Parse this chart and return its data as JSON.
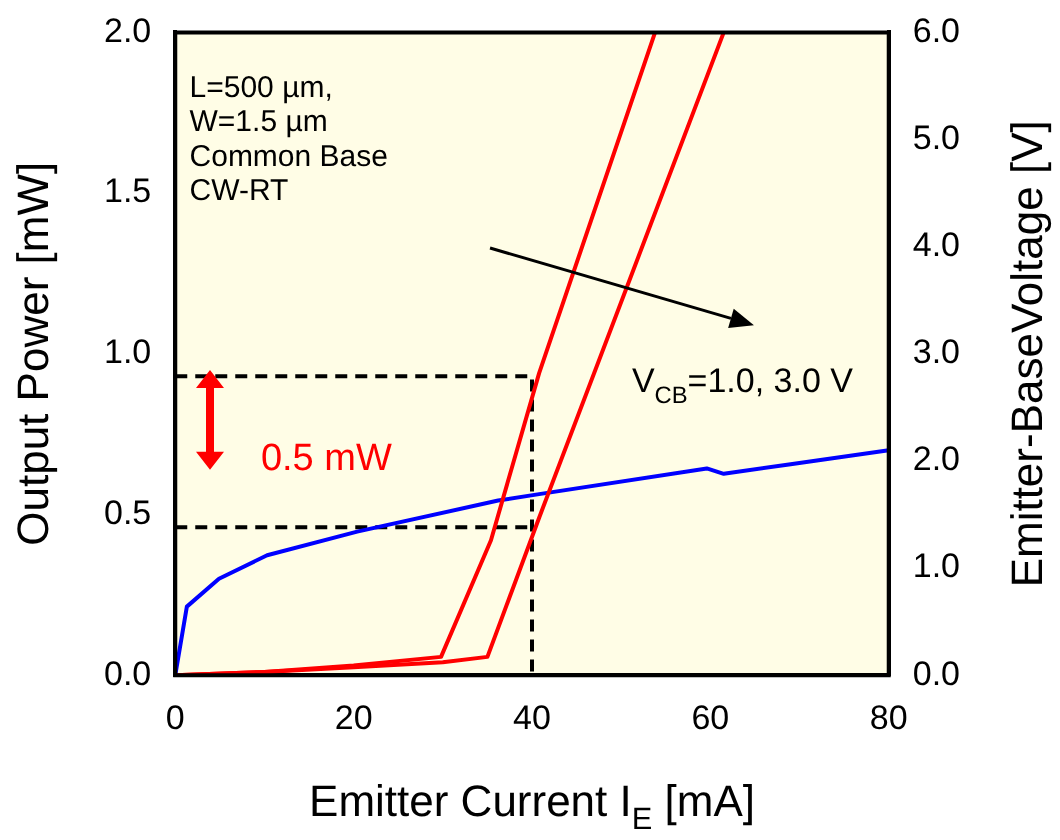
{
  "chart_data": {
    "type": "line",
    "xlabel": "Emitter Current I$_{E}$ [mA]",
    "ylabel": "Output Power [mW]",
    "y2label": "Emitter-BaseVoltage [V]",
    "xlim": [
      0,
      80
    ],
    "xticks": [
      0,
      20,
      40,
      60,
      80
    ],
    "ylim": [
      0,
      2
    ],
    "yticks": [
      {
        "value": 0,
        "label": "0.0"
      },
      {
        "value": 0.5,
        "label": "0.5"
      },
      {
        "value": 1,
        "label": "1.0"
      },
      {
        "value": 1.5,
        "label": "1.5"
      },
      {
        "value": 2,
        "label": "2.0"
      }
    ],
    "y2lim": [
      0,
      6
    ],
    "y2ticks": [
      {
        "value": 0,
        "label": "0.0"
      },
      {
        "value": 1,
        "label": "1.0"
      },
      {
        "value": 2,
        "label": "2.0"
      },
      {
        "value": 3,
        "label": "3.0"
      },
      {
        "value": 4,
        "label": "4.0"
      },
      {
        "value": 5,
        "label": "5.0"
      },
      {
        "value": 6,
        "label": "6.0"
      }
    ],
    "grid": false,
    "legend": false,
    "marker": "none",
    "annotations": [
      "L=500 µm,\nW=1.5 µm\nCommon Base\nCW-RT",
      "V$_{CB}$=1.0, 3.0 V",
      "0.5 mW"
    ],
    "series": [
      {
        "color": "#ff0000",
        "x": [
          0,
          10,
          20,
          29.8,
          35.4,
          40.8,
          53.8
        ],
        "values": [
          0,
          0.01,
          0.03,
          0.057,
          0.42,
          0.94,
          2.0
        ]
      },
      {
        "color": "#ff0000",
        "x": [
          0,
          10,
          20,
          30,
          35,
          40.8,
          61.5
        ],
        "values": [
          0,
          0.01,
          0.025,
          0.04,
          0.057,
          0.49,
          2.0
        ]
      },
      {
        "color": "#0000ff",
        "axis": "y2",
        "x": [
          0,
          1.3,
          4.9,
          10.3,
          20.4,
          36.2,
          40.8,
          59.6,
          61.5,
          69,
          80
        ],
        "values": [
          0,
          0.64,
          0.9,
          1.12,
          1.34,
          1.63,
          1.69,
          1.93,
          1.88,
          1.97,
          2.1
        ]
      },
      {
        "color": "#000000",
        "line_style": "dashed",
        "x": [
          0,
          40,
          40
        ],
        "values": [
          0.93,
          0.93,
          0
        ]
      },
      {
        "color": "#000000",
        "line_style": "dashed",
        "x": [
          0,
          40
        ],
        "values": [
          0.46,
          0.46
        ]
      }
    ]
  }
}
